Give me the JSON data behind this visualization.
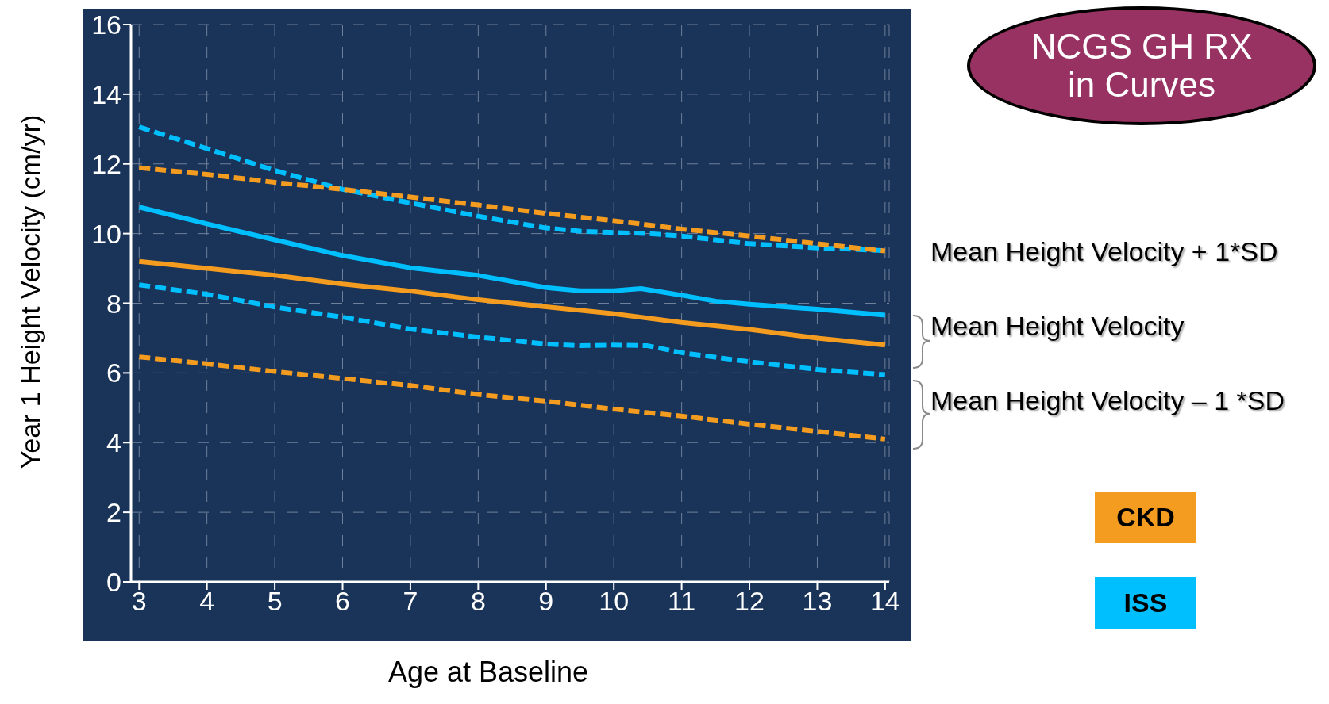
{
  "chart_data": {
    "type": "line",
    "title": "NCGS GH RX in Curves",
    "xlabel": "Age at Baseline",
    "ylabel": "Year 1 Height Velocity (cm/yr)",
    "xlim": [
      2.88,
      14.06
    ],
    "ylim": [
      0,
      16
    ],
    "xticks": [
      3,
      4,
      5,
      6,
      7,
      8,
      9,
      10,
      11,
      12,
      13,
      14
    ],
    "yticks": [
      0,
      2,
      4,
      6,
      8,
      10,
      12,
      14,
      16
    ],
    "grid": true,
    "legend": "right",
    "line_style": "dashed",
    "annotations": [
      "Mean Height Velocity + 1*SD",
      "Mean Height Velocity",
      "Mean Height Velocity – 1 *SD"
    ],
    "series": [
      {
        "color": "#00bfff",
        "x": [
          3,
          4,
          5,
          6,
          7,
          8,
          9,
          9.5,
          10,
          10.5,
          11,
          12,
          13,
          14
        ],
        "values": [
          13.06,
          12.44,
          11.81,
          11.27,
          10.88,
          10.5,
          10.16,
          10.07,
          10.03,
          10.0,
          9.93,
          9.71,
          9.59,
          9.51
        ]
      },
      {
        "color": "#f39c1f",
        "x": [
          3,
          4,
          5,
          6,
          7,
          8,
          9,
          10,
          11,
          12,
          13,
          14
        ],
        "values": [
          11.89,
          11.7,
          11.47,
          11.27,
          11.05,
          10.82,
          10.58,
          10.37,
          10.13,
          9.93,
          9.71,
          9.5
        ]
      },
      {
        "name": "CKD",
        "color": "#f39c1f",
        "line_style": "solid",
        "x": [
          3,
          4,
          5,
          6,
          7,
          8,
          9,
          10,
          11,
          12,
          13,
          14
        ],
        "values": [
          9.2,
          9.0,
          8.8,
          8.55,
          8.35,
          8.1,
          7.9,
          7.7,
          7.45,
          7.25,
          7.0,
          6.8
        ]
      },
      {
        "name": "ISS",
        "color": "#00bfff",
        "line_style": "solid",
        "x": [
          3,
          4,
          5,
          6,
          7,
          8,
          9,
          9.5,
          10,
          10.4,
          11,
          11.5,
          12,
          13,
          14
        ],
        "values": [
          10.76,
          10.28,
          9.82,
          9.37,
          9.02,
          8.8,
          8.45,
          8.36,
          8.36,
          8.42,
          8.23,
          8.06,
          7.97,
          7.83,
          7.66
        ]
      },
      {
        "color": "#00bfff",
        "x": [
          3,
          4,
          5,
          6,
          7,
          8,
          9,
          9.5,
          10,
          10.5,
          11,
          12,
          13,
          14
        ],
        "values": [
          8.53,
          8.26,
          7.89,
          7.6,
          7.26,
          7.03,
          6.83,
          6.78,
          6.8,
          6.78,
          6.58,
          6.32,
          6.1,
          5.95
        ]
      },
      {
        "color": "#f39c1f",
        "x": [
          3,
          4,
          5,
          6,
          7,
          8,
          9,
          10,
          11,
          12,
          13,
          14
        ],
        "values": [
          6.46,
          6.26,
          6.04,
          5.84,
          5.64,
          5.38,
          5.19,
          4.96,
          4.76,
          4.53,
          4.32,
          4.1
        ]
      }
    ]
  }
}
